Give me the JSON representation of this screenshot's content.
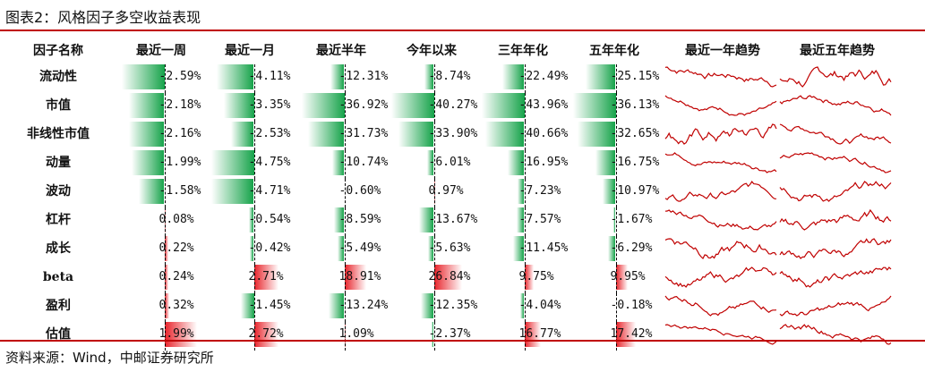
{
  "title": "图表2：风格因子多空收益表现",
  "source": "资料来源：Wind，中邮证券研究所",
  "colors": {
    "positive": "#e8252c",
    "negative": "#16a34a",
    "line": "#c00000"
  },
  "headers": [
    "因子名称",
    "最近一周",
    "最近一月",
    "最近半年",
    "今年以来",
    "三年年化",
    "五年年化",
    "最近一年趋势",
    "最近五年趋势"
  ],
  "chart_data": {
    "type": "table",
    "columns": [
      "最近一周",
      "最近一月",
      "最近半年",
      "今年以来",
      "三年年化",
      "五年年化"
    ],
    "column_max_abs": [
      2.59,
      4.75,
      36.92,
      40.27,
      43.96,
      36.13
    ],
    "rows": [
      {
        "factor": "流动性",
        "values": [
          -2.59,
          -4.11,
          -12.31,
          -8.74,
          -22.49,
          -25.15
        ],
        "labels": [
          "-2.59%",
          "-4.11%",
          "-12.31%",
          "-8.74%",
          "-22.49%",
          "-25.15%"
        ]
      },
      {
        "factor": "市值",
        "values": [
          -2.18,
          -3.35,
          -36.92,
          -40.27,
          -43.96,
          -36.13
        ],
        "labels": [
          "-2.18%",
          "-3.35%",
          "-36.92%",
          "-40.27%",
          "-43.96%",
          "-36.13%"
        ]
      },
      {
        "factor": "非线性市值",
        "values": [
          -2.16,
          -2.53,
          -31.73,
          -33.9,
          -40.66,
          -32.65
        ],
        "labels": [
          "-2.16%",
          "-2.53%",
          "-31.73%",
          "-33.90%",
          "-40.66%",
          "-32.65%"
        ]
      },
      {
        "factor": "动量",
        "values": [
          -1.99,
          -4.75,
          -10.74,
          -6.01,
          -16.95,
          -16.75
        ],
        "labels": [
          "-1.99%",
          "-4.75%",
          "-10.74%",
          "-6.01%",
          "-16.95%",
          "-16.75%"
        ]
      },
      {
        "factor": "波动",
        "values": [
          -1.58,
          -4.71,
          -0.6,
          0.97,
          -7.23,
          -10.97
        ],
        "labels": [
          "-1.58%",
          "-4.71%",
          "-0.60%",
          "0.97%",
          "-7.23%",
          "-10.97%"
        ]
      },
      {
        "factor": "杠杆",
        "values": [
          0.08,
          -0.54,
          -8.59,
          -13.67,
          -7.57,
          -1.67
        ],
        "labels": [
          "0.08%",
          "-0.54%",
          "-8.59%",
          "-13.67%",
          "-7.57%",
          "-1.67%"
        ]
      },
      {
        "factor": "成长",
        "values": [
          0.22,
          -0.42,
          -5.49,
          -5.63,
          -11.45,
          -6.29
        ],
        "labels": [
          "0.22%",
          "-0.42%",
          "-5.49%",
          "-5.63%",
          "-11.45%",
          "-6.29%"
        ]
      },
      {
        "factor": "beta",
        "values": [
          0.24,
          2.71,
          18.91,
          26.84,
          9.75,
          9.95
        ],
        "labels": [
          "0.24%",
          "2.71%",
          "18.91%",
          "26.84%",
          "9.75%",
          "9.95%"
        ]
      },
      {
        "factor": "盈利",
        "values": [
          0.32,
          -1.45,
          -13.24,
          -12.35,
          -4.04,
          -0.18
        ],
        "labels": [
          "0.32%",
          "-1.45%",
          "-13.24%",
          "-12.35%",
          "-4.04%",
          "-0.18%"
        ]
      },
      {
        "factor": "估值",
        "values": [
          1.99,
          2.72,
          1.09,
          -2.37,
          16.77,
          17.42
        ],
        "labels": [
          "1.99%",
          "2.72%",
          "1.09%",
          "-2.37%",
          "16.77%",
          "17.42%"
        ]
      }
    ]
  }
}
